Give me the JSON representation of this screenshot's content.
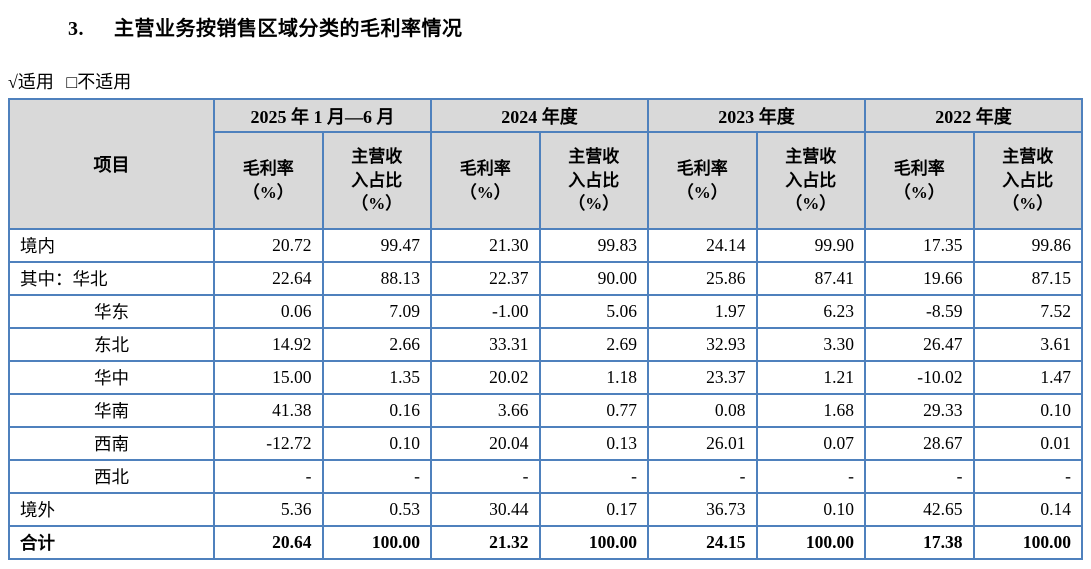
{
  "heading": {
    "number": "3.",
    "title": "主营业务按销售区域分类的毛利率情况"
  },
  "applicability": {
    "applicable": "√适用",
    "not_applicable": "□不适用"
  },
  "table": {
    "item_header": "项目",
    "periods": [
      "2025 年 1 月—6 月",
      "2024 年度",
      "2023 年度",
      "2022 年度"
    ],
    "sub_header_margin": "毛利率\n（%）",
    "sub_header_share": "主营收\n入占比\n（%）",
    "border_color": "#4f81bd",
    "header_bg": "#d9d9d9",
    "rows": [
      {
        "label": "境内",
        "indent": false,
        "bold": false,
        "values": [
          "20.72",
          "99.47",
          "21.30",
          "99.83",
          "24.14",
          "99.90",
          "17.35",
          "99.86"
        ]
      },
      {
        "label": "其中：华北",
        "indent": false,
        "bold": false,
        "values": [
          "22.64",
          "88.13",
          "22.37",
          "90.00",
          "25.86",
          "87.41",
          "19.66",
          "87.15"
        ]
      },
      {
        "label": "华东",
        "indent": true,
        "bold": false,
        "values": [
          "0.06",
          "7.09",
          "-1.00",
          "5.06",
          "1.97",
          "6.23",
          "-8.59",
          "7.52"
        ]
      },
      {
        "label": "东北",
        "indent": true,
        "bold": false,
        "values": [
          "14.92",
          "2.66",
          "33.31",
          "2.69",
          "32.93",
          "3.30",
          "26.47",
          "3.61"
        ]
      },
      {
        "label": "华中",
        "indent": true,
        "bold": false,
        "values": [
          "15.00",
          "1.35",
          "20.02",
          "1.18",
          "23.37",
          "1.21",
          "-10.02",
          "1.47"
        ]
      },
      {
        "label": "华南",
        "indent": true,
        "bold": false,
        "values": [
          "41.38",
          "0.16",
          "3.66",
          "0.77",
          "0.08",
          "1.68",
          "29.33",
          "0.10"
        ]
      },
      {
        "label": "西南",
        "indent": true,
        "bold": false,
        "values": [
          "-12.72",
          "0.10",
          "20.04",
          "0.13",
          "26.01",
          "0.07",
          "28.67",
          "0.01"
        ]
      },
      {
        "label": "西北",
        "indent": true,
        "bold": false,
        "values": [
          "-",
          "-",
          "-",
          "-",
          "-",
          "-",
          "-",
          "-"
        ]
      },
      {
        "label": "境外",
        "indent": false,
        "bold": false,
        "values": [
          "5.36",
          "0.53",
          "30.44",
          "0.17",
          "36.73",
          "0.10",
          "42.65",
          "0.14"
        ]
      },
      {
        "label": "合计",
        "indent": false,
        "bold": true,
        "values": [
          "20.64",
          "100.00",
          "21.32",
          "100.00",
          "24.15",
          "100.00",
          "17.38",
          "100.00"
        ]
      }
    ]
  }
}
